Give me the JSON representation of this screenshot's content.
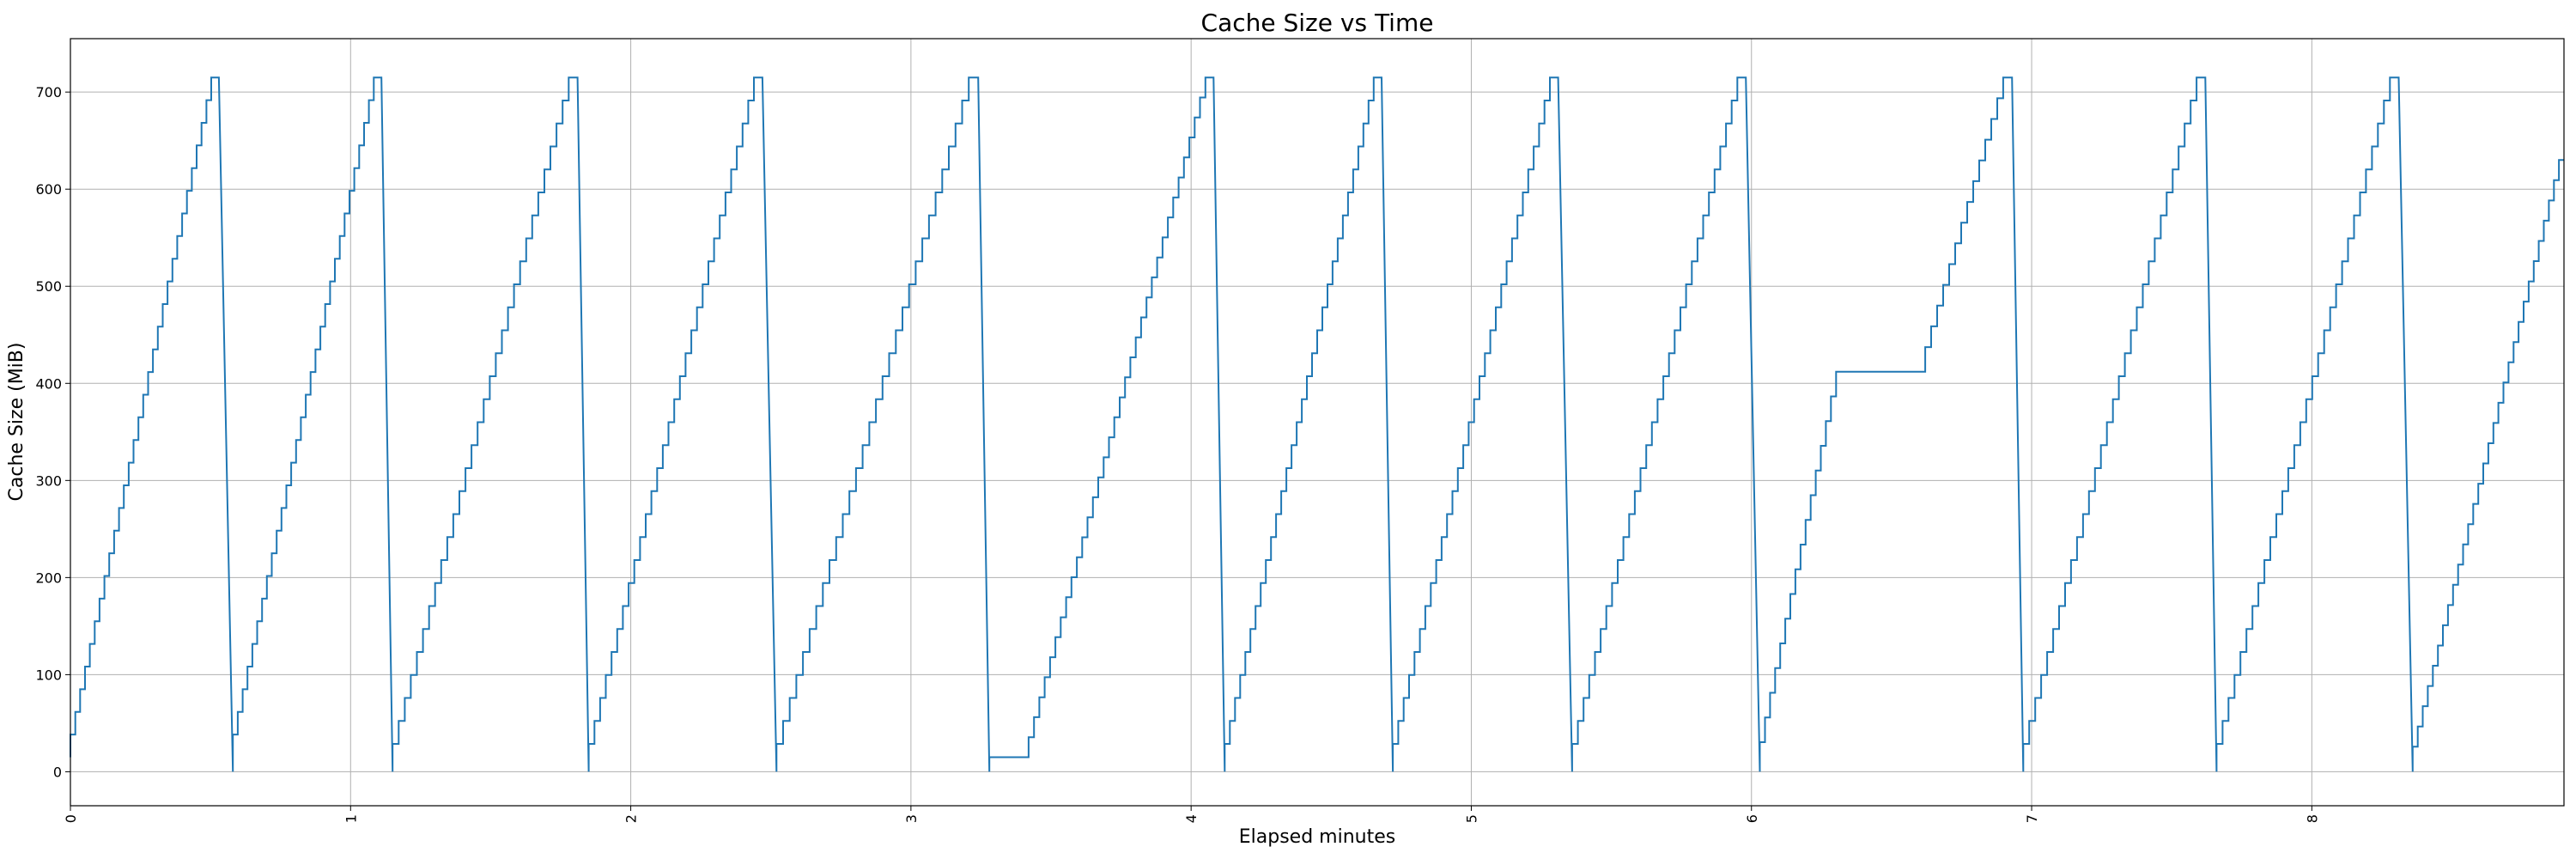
{
  "chart_data": {
    "type": "line",
    "title": "Cache Size vs Time",
    "xlabel": "Elapsed minutes",
    "ylabel": "Cache Size (MiB)",
    "xlim": [
      0,
      8.9
    ],
    "ylim": [
      -35,
      755
    ],
    "x_ticks": [
      0,
      1,
      2,
      3,
      4,
      5,
      6,
      7,
      8
    ],
    "y_ticks": [
      0,
      100,
      200,
      300,
      400,
      500,
      600,
      700
    ],
    "grid": true,
    "line_color": "#1f77b4",
    "series": [
      {
        "cycles": [
          {
            "start": 0.0,
            "peak_time": 0.52,
            "drop_time": 0.58,
            "start_value": 15,
            "peak_value": 715
          },
          {
            "start": 0.58,
            "peak_time": 1.1,
            "drop_time": 1.15,
            "start_value": 15,
            "peak_value": 715
          },
          {
            "start": 1.15,
            "peak_time": 1.8,
            "drop_time": 1.85,
            "start_value": 5,
            "peak_value": 715
          },
          {
            "start": 1.85,
            "peak_time": 2.46,
            "drop_time": 2.52,
            "start_value": 5,
            "peak_value": 715
          },
          {
            "start": 2.52,
            "peak_time": 3.23,
            "drop_time": 3.28,
            "start_value": 5,
            "peak_value": 715
          },
          {
            "start": 3.28,
            "plateau_end": 3.42,
            "plateau_value": 15,
            "peak_time": 4.07,
            "drop_time": 4.12,
            "start_value": 15,
            "peak_value": 715
          },
          {
            "start": 4.12,
            "peak_time": 4.67,
            "drop_time": 4.72,
            "start_value": 5,
            "peak_value": 715
          },
          {
            "start": 4.72,
            "peak_time": 5.3,
            "drop_time": 5.36,
            "start_value": 5,
            "peak_value": 715
          },
          {
            "start": 5.36,
            "peak_time": 5.97,
            "drop_time": 6.03,
            "start_value": 5,
            "peak_value": 715
          },
          {
            "start": 6.03,
            "mid_time": 6.32,
            "mid_value": 412,
            "plateau_end": 6.62,
            "peak_time": 6.92,
            "drop_time": 6.97,
            "start_value": 5,
            "peak_value": 715
          },
          {
            "start": 6.97,
            "peak_time": 7.61,
            "drop_time": 7.66,
            "start_value": 5,
            "peak_value": 715
          },
          {
            "start": 7.66,
            "peak_time": 8.3,
            "drop_time": 8.36,
            "start_value": 5,
            "peak_value": 715
          },
          {
            "start": 8.36,
            "end_time": 8.9,
            "start_value": 5,
            "end_value": 630
          }
        ]
      }
    ]
  }
}
